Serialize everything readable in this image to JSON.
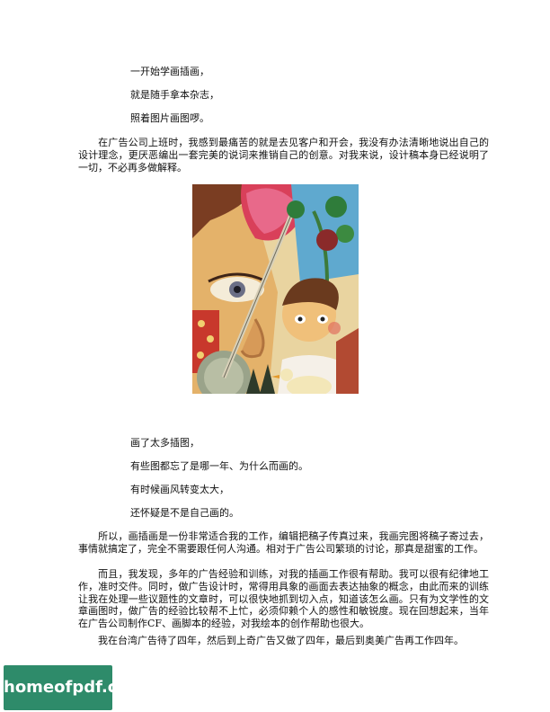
{
  "intro_lines": [
    "一开始学画插画，",
    "就是随手拿本杂志，",
    "照着图片画图啰。"
  ],
  "para1": "在广告公司上班时，我感到最痛苦的就是去见客户和开会，我没有办法清晰地说出自己的设计理念，更厌恶编出一套完美的说词来推销自己的创意。对我来说，设计稿本身已经说明了一切，不必再多做解释。",
  "mid_lines": [
    "画了太多插图，",
    "有些图都忘了是哪一年、为什么而画的。",
    "有时候画风转变太大，",
    "还怀疑是不是自己画的。"
  ],
  "para2": "所以，画插画是一份非常适合我的工作，编辑把稿子传真过来，我画完图将稿子寄过去，事情就搞定了，完全不需要跟任何人沟通。相对于广告公司繁琐的讨论，那真是甜蜜的工作。",
  "para3": "而且，我发现，多年的广告经验和训练，对我的插画工作很有帮助。我可以很有纪律地工作，准时交件。同时，做广告设计时，常得用具象的画面去表达抽象的概念，由此而来的训练让我在处理一些议题性的文章时，可以很快地抓到切入点，知道该怎么画。只有为文学性的文章画图时，做广告的经验比较帮不上忙，必须仰赖个人的感性和敏锐度。现在回想起来，当年在广告公司制作CF、画脚本的经验，对我绘本的创作帮助也很大。",
  "para4": "我在台湾广告待了四年，然后到上奇广告又做了四年，最后到奥美广告再工作四年。",
  "watermark": "homeofpdf.com"
}
